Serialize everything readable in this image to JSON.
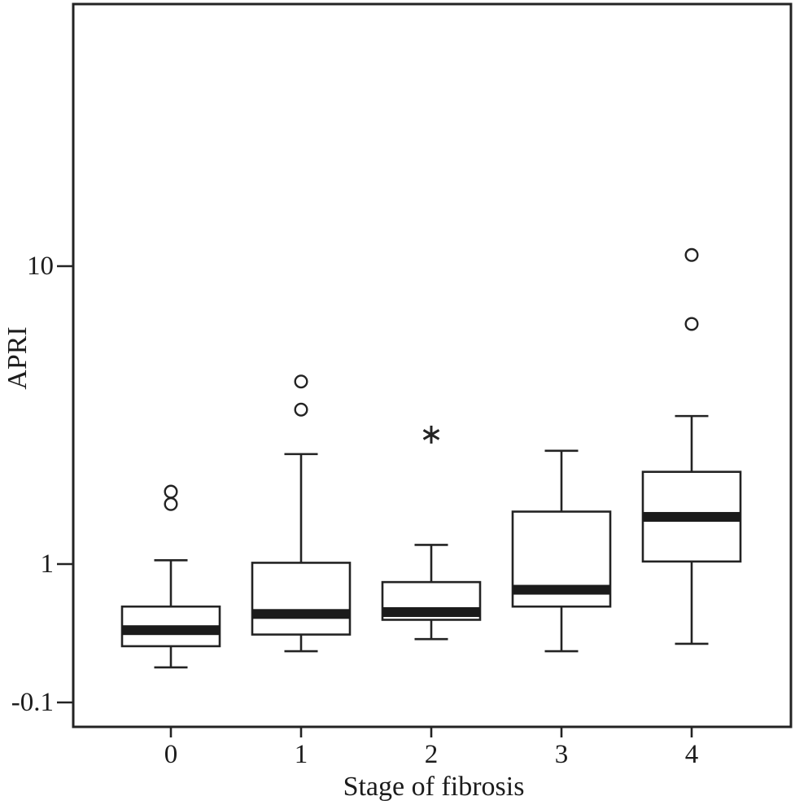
{
  "figure": {
    "background": "#ffffff",
    "line_color": "#232323",
    "median_color": "#1b1b1b"
  },
  "chart_data": {
    "type": "boxplot",
    "title": "",
    "xlabel": "Stage of fibrosis",
    "ylabel": "APRI",
    "yscale": "log",
    "ylim_labels": [
      "-0.1",
      "10"
    ],
    "yticks": [
      "10",
      "1",
      "-0.1"
    ],
    "categories": [
      "0",
      "1",
      "2",
      "3",
      "4"
    ],
    "grid": false,
    "legend": "none",
    "series": [
      {
        "category": "0",
        "whisker_low": 0.45,
        "q1": 0.53,
        "median": 0.6,
        "q3": 0.72,
        "whisker_high": 1.03,
        "outliers": [
          1.59,
          1.75
        ],
        "extremes": []
      },
      {
        "category": "1",
        "whisker_low": 0.51,
        "q1": 0.58,
        "median": 0.68,
        "q3": 1.01,
        "whisker_high": 2.34,
        "outliers": [
          3.3,
          4.1
        ],
        "extremes": []
      },
      {
        "category": "2",
        "whisker_low": 0.56,
        "q1": 0.65,
        "median": 0.69,
        "q3": 0.87,
        "whisker_high": 1.16,
        "outliers": [],
        "extremes": [
          2.72
        ]
      },
      {
        "category": "3",
        "whisker_low": 0.51,
        "q1": 0.72,
        "median": 0.82,
        "q3": 1.5,
        "whisker_high": 2.4,
        "outliers": [],
        "extremes": []
      },
      {
        "category": "4",
        "whisker_low": 0.54,
        "q1": 1.02,
        "median": 1.44,
        "q3": 2.04,
        "whisker_high": 3.14,
        "outliers": [
          6.4,
          10.9
        ],
        "extremes": []
      }
    ]
  }
}
